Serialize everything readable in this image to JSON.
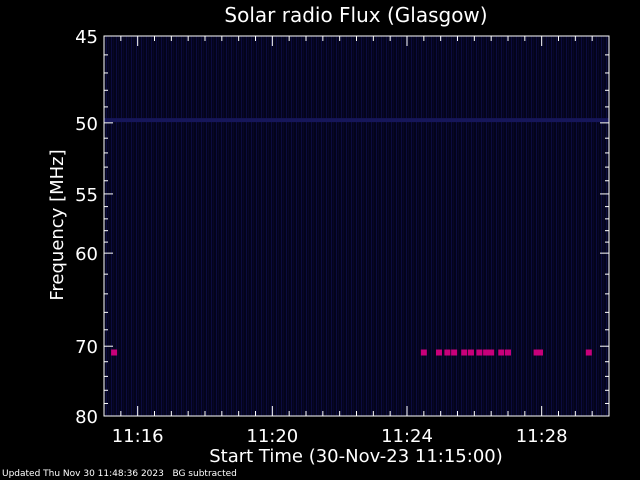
{
  "chart_data": {
    "type": "heatmap",
    "title": "Solar radio Flux (Glasgow)",
    "xlabel": "Start Time (30-Nov-23 11:15:00)",
    "ylabel": "Frequency [MHz]",
    "x_tick_labels": [
      "11:16",
      "11:20",
      "11:24",
      "11:28"
    ],
    "x_tick_minutes": [
      16,
      20,
      24,
      28
    ],
    "xlim_minutes": [
      15,
      30
    ],
    "y_tick_labels": [
      "45",
      "50",
      "55",
      "60",
      "70",
      "80"
    ],
    "y_tick_values": [
      45,
      50,
      55,
      60,
      70,
      80
    ],
    "ylim": [
      45,
      80
    ],
    "y_scale": "reciprocal",
    "grid": false,
    "colors": {
      "background": "#000000",
      "axes": "#ffffff",
      "spectrum": "#0a0a3a",
      "burst": "#c8007a"
    },
    "events_mhz": 70.8,
    "events_minutes": [
      15.3,
      24.5,
      24.95,
      25.2,
      25.4,
      25.7,
      25.9,
      26.15,
      26.35,
      26.5,
      26.8,
      27.0,
      27.85,
      27.95,
      29.4
    ]
  },
  "footer": {
    "updated": "Updated Thu Nov 30 11:48:36 2023",
    "note": "BG subtracted"
  }
}
